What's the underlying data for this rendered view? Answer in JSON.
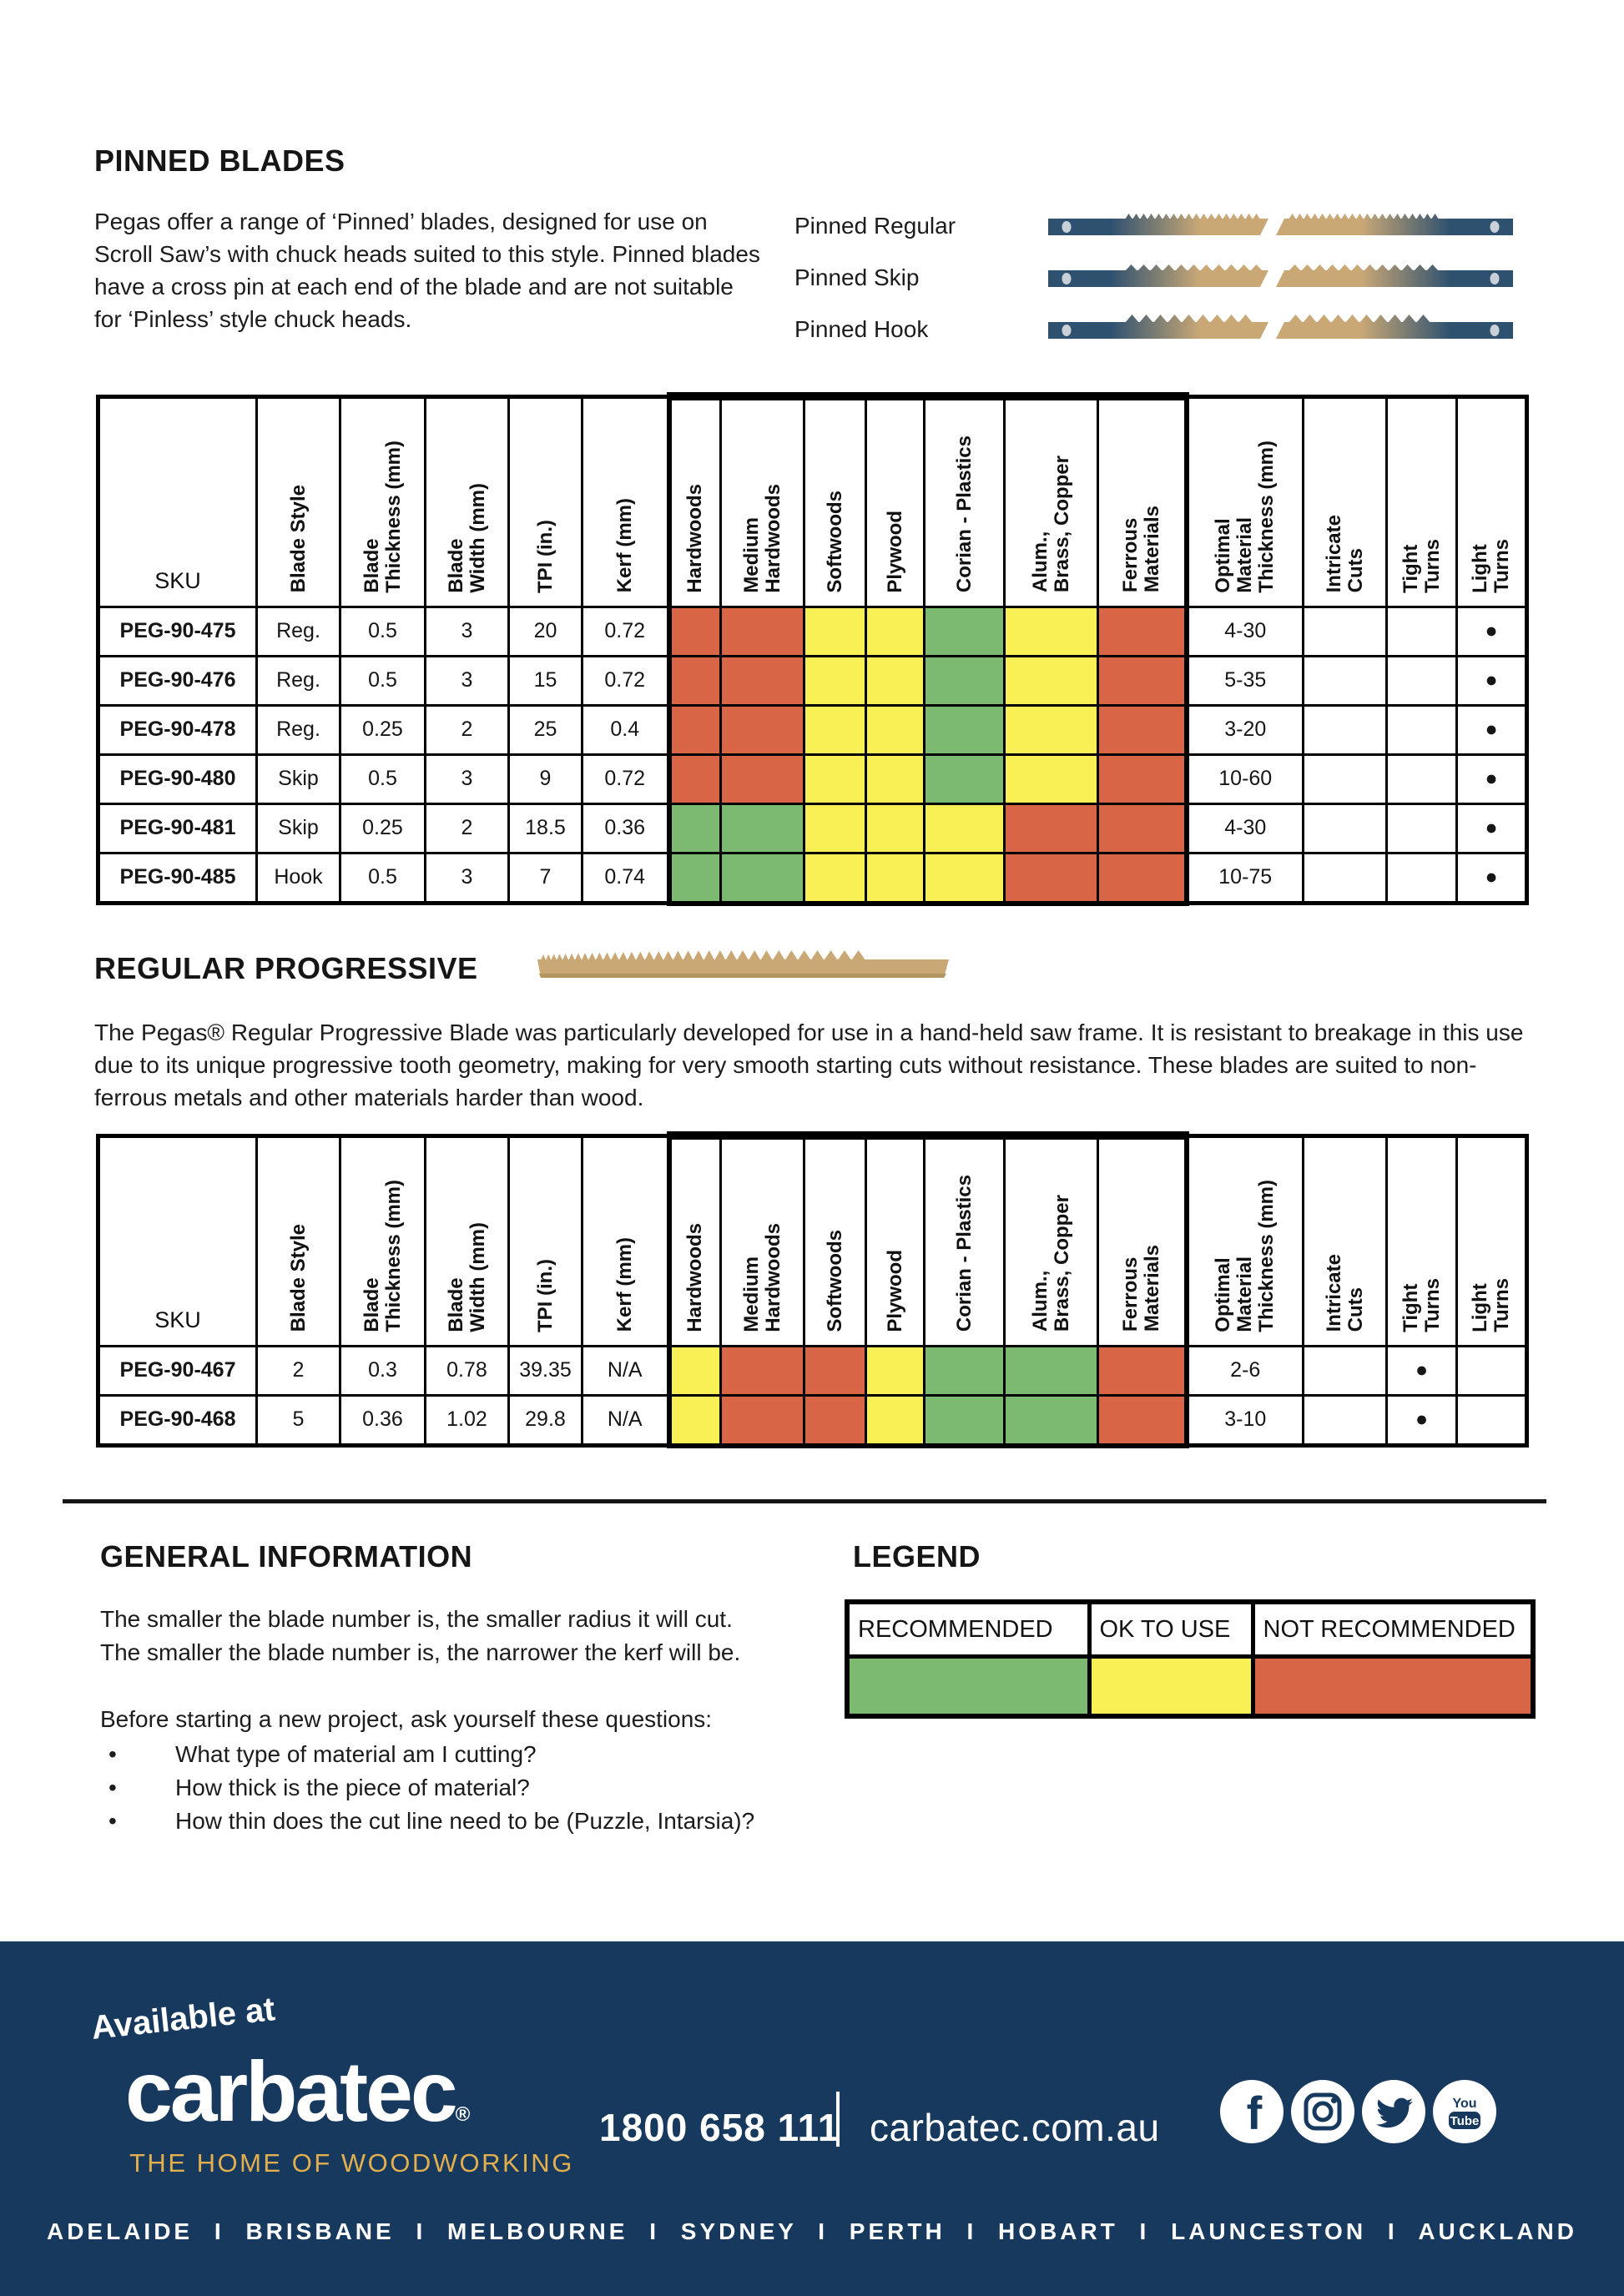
{
  "colors": {
    "recommended": "#7CBA72",
    "ok_to_use": "#F9F055",
    "not_recommended": "#D96547",
    "footer_bg": "#17395E",
    "footer_gold": "#E2AF4E",
    "blade_blue": "#2F5170",
    "blade_tan": "#C9A876",
    "pin_gray": "#C9D0D8"
  },
  "pinned_section": {
    "title": "PINNED BLADES",
    "description": "Pegas offer a range of ‘Pinned’ blades, designed for use on Scroll Saw’s with chuck heads suited to this style. Pinned blades have a cross pin at each end of the blade and are not suitable for ‘Pinless’ style chuck heads.",
    "blade_types": [
      {
        "label": "Pinned Regular",
        "style": "regular"
      },
      {
        "label": "Pinned Skip",
        "style": "skip"
      },
      {
        "label": "Pinned Hook",
        "style": "hook"
      }
    ]
  },
  "table_columns": [
    "SKU",
    "Blade Style",
    "Blade\nThickness (mm)",
    "Blade\nWidth (mm)",
    "TPI (in.)",
    "Kerf (mm)",
    "Hardwoods",
    "Medium\nHardwoods",
    "Softwoods",
    "Plywood",
    "Corian  - Plastics",
    "Alum.,\nBrass, Copper",
    "Ferrous\nMaterials",
    "Optimal\nMaterial\nThickness (mm)",
    "Intricate\nCuts",
    "Tight\nTurns",
    "Light\nTurns"
  ],
  "pinned_table": {
    "rows": [
      {
        "cells": [
          "PEG-90-475",
          "Reg.",
          "0.5",
          "3",
          "20",
          "0.72"
        ],
        "materials": [
          "not",
          "not",
          "ok",
          "ok",
          "rec",
          "ok",
          "not"
        ],
        "optimal": "4-30",
        "intricate": "",
        "tight": "",
        "light": "●"
      },
      {
        "cells": [
          "PEG-90-476",
          "Reg.",
          "0.5",
          "3",
          "15",
          "0.72"
        ],
        "materials": [
          "not",
          "not",
          "ok",
          "ok",
          "rec",
          "ok",
          "not"
        ],
        "optimal": "5-35",
        "intricate": "",
        "tight": "",
        "light": "●"
      },
      {
        "cells": [
          "PEG-90-478",
          "Reg.",
          "0.25",
          "2",
          "25",
          "0.4"
        ],
        "materials": [
          "not",
          "not",
          "ok",
          "ok",
          "rec",
          "ok",
          "not"
        ],
        "optimal": "3-20",
        "intricate": "",
        "tight": "",
        "light": "●"
      },
      {
        "cells": [
          "PEG-90-480",
          "Skip",
          "0.5",
          "3",
          "9",
          "0.72"
        ],
        "materials": [
          "not",
          "not",
          "ok",
          "ok",
          "rec",
          "ok",
          "not"
        ],
        "optimal": "10-60",
        "intricate": "",
        "tight": "",
        "light": "●"
      },
      {
        "cells": [
          "PEG-90-481",
          "Skip",
          "0.25",
          "2",
          "18.5",
          "0.36"
        ],
        "materials": [
          "rec",
          "rec",
          "ok",
          "ok",
          "ok",
          "not",
          "not"
        ],
        "optimal": "4-30",
        "intricate": "",
        "tight": "",
        "light": "●"
      },
      {
        "cells": [
          "PEG-90-485",
          "Hook",
          "0.5",
          "3",
          "7",
          "0.74"
        ],
        "materials": [
          "rec",
          "rec",
          "ok",
          "ok",
          "ok",
          "not",
          "not"
        ],
        "optimal": "10-75",
        "intricate": "",
        "tight": "",
        "light": "●"
      }
    ]
  },
  "progressive_section": {
    "title": "REGULAR PROGRESSIVE",
    "description": "The Pegas® Regular Progressive Blade was particularly developed for use in a hand-held saw frame. It is resistant to breakage in this use due to its unique progressive tooth geometry, making for very smooth starting cuts without resistance. These blades are suited to non-ferrous metals and other materials harder than wood."
  },
  "progressive_table": {
    "rows": [
      {
        "cells": [
          "PEG-90-467",
          "2",
          "0.3",
          "0.78",
          "39.35",
          "N/A"
        ],
        "materials": [
          "ok",
          "not",
          "not",
          "ok",
          "rec",
          "rec",
          "not"
        ],
        "optimal": "2-6",
        "intricate": "",
        "tight": "●",
        "light": ""
      },
      {
        "cells": [
          "PEG-90-468",
          "5",
          "0.36",
          "1.02",
          "29.8",
          "N/A"
        ],
        "materials": [
          "ok",
          "not",
          "not",
          "ok",
          "rec",
          "rec",
          "not"
        ],
        "optimal": "3-10",
        "intricate": "",
        "tight": "●",
        "light": ""
      }
    ]
  },
  "general_info": {
    "title": "GENERAL INFORMATION",
    "lines": [
      "The smaller the blade number is, the smaller radius it will cut.",
      "The smaller the blade number is, the narrower the kerf will be."
    ],
    "question_intro": "Before starting a new project, ask yourself these questions:",
    "bullet": "•",
    "questions": [
      "What type of material am I cutting?",
      "How thick is the piece of material?",
      "How thin does the cut line need to be (Puzzle, Intarsia)?"
    ]
  },
  "legend": {
    "title": "LEGEND",
    "items": [
      {
        "label": "RECOMMENDED",
        "status": "rec"
      },
      {
        "label": "OK TO USE",
        "status": "ok"
      },
      {
        "label": "NOT RECOMMENDED",
        "status": "not"
      }
    ]
  },
  "footer": {
    "available_at": "Available at",
    "logo_text": "carbatec",
    "logo_reg": "®",
    "tagline": "THE HOME OF WOODWORKING",
    "phone": "1800 658 111",
    "website": "carbatec.com.au",
    "social": [
      "facebook",
      "instagram",
      "twitter",
      "youtube"
    ],
    "cities": [
      "ADELAIDE",
      "BRISBANE",
      "MELBOURNE",
      "SYDNEY",
      "PERTH",
      "HOBART",
      "LAUNCESTON",
      "AUCKLAND"
    ],
    "city_separator": "I"
  }
}
